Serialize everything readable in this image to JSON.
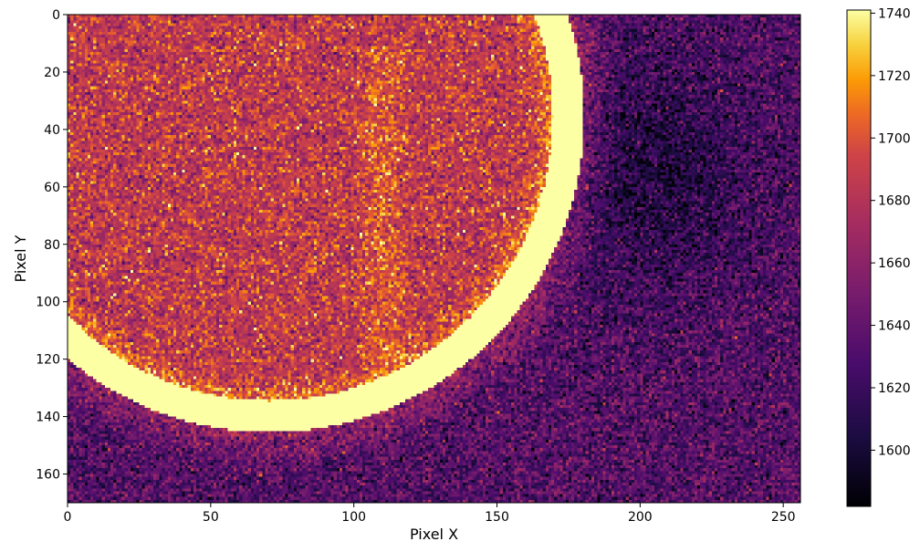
{
  "chart_data": {
    "type": "heatmap",
    "title": "",
    "xlabel": "Pixel X",
    "ylabel": "Pixel Y",
    "xlim": [
      0,
      256
    ],
    "ylim": [
      170,
      0
    ],
    "x_ticks": [
      0,
      50,
      100,
      150,
      200,
      250
    ],
    "y_ticks": [
      0,
      20,
      40,
      60,
      80,
      100,
      120,
      140,
      160
    ],
    "grid": false,
    "colormap": "inferno",
    "colorbar": {
      "min": 1582,
      "max": 1741,
      "ticks": [
        1600,
        1620,
        1640,
        1660,
        1680,
        1700,
        1720,
        1740
      ]
    },
    "dimensions": {
      "cols": 256,
      "rows": 170
    },
    "features": {
      "ring": {
        "center_x": 70,
        "center_y": 35,
        "radius": 110,
        "width": 11,
        "value": 1741
      },
      "interior_level": 1685,
      "exterior_level": 1632,
      "vertical_band": {
        "x": 110,
        "y_range": [
          10,
          120
        ],
        "value": 1702
      },
      "dark_region": {
        "center_x": 205,
        "center_y": 55,
        "value": 1605
      },
      "noise_sd": 18
    }
  }
}
